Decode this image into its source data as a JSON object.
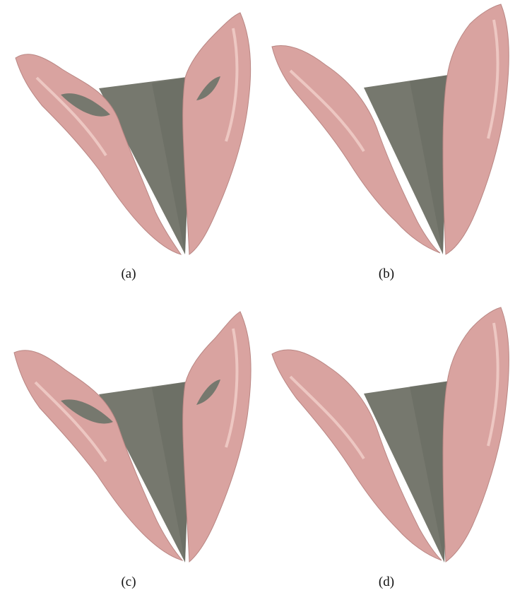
{
  "figure": {
    "panels": [
      {
        "id": "a",
        "caption": "(a)"
      },
      {
        "id": "b",
        "caption": "(b)"
      },
      {
        "id": "c",
        "caption": "(c)"
      },
      {
        "id": "d",
        "caption": "(d)"
      }
    ],
    "colors": {
      "surface": "#d9a3a0",
      "surface_shadow": "#b98683",
      "surface_highlight": "#f1cfcb",
      "plane": "#76786e",
      "plane_dark": "#5f615a"
    }
  }
}
